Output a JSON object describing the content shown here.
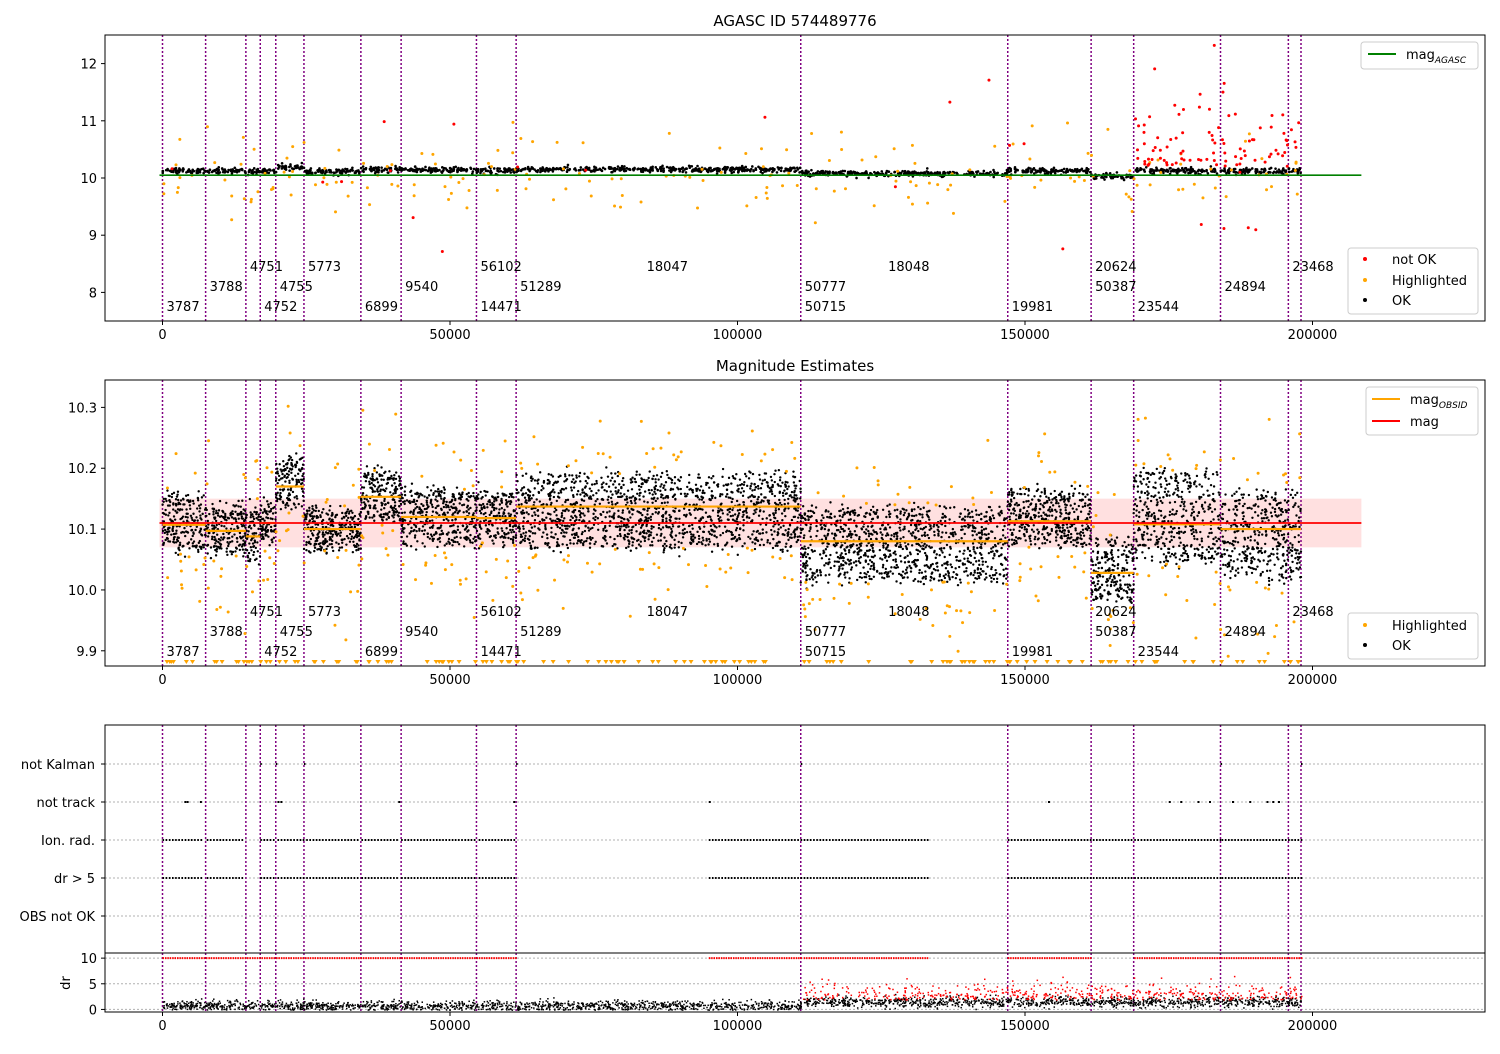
{
  "chart_data": [
    {
      "type": "scatter",
      "title": "AGASC ID 574489776",
      "xlim": [
        -10000,
        230000
      ],
      "ylim": [
        7.5,
        12.5
      ],
      "xticks": [
        0,
        50000,
        100000,
        150000,
        200000
      ],
      "yticks": [
        8,
        9,
        10,
        11,
        12
      ],
      "grid": false,
      "mag_agasc": 10.05,
      "legend_top": {
        "position": "top-right",
        "entries": [
          {
            "label": "mag",
            "sub": "AGASC",
            "color": "#008000"
          }
        ]
      },
      "legend_bottom": {
        "position": "bottom-right",
        "entries": [
          {
            "label": "not OK",
            "color": "#ff0000"
          },
          {
            "label": "Highlighted",
            "color": "#ffa500"
          },
          {
            "label": "OK",
            "color": "#000000"
          }
        ]
      },
      "obsid_labels": [
        {
          "x": 0,
          "label": "3787"
        },
        {
          "x": 7500,
          "label": "3788"
        },
        {
          "x": 14500,
          "label": "4751"
        },
        {
          "x": 17000,
          "label": "4752"
        },
        {
          "x": 19700,
          "label": "4755"
        },
        {
          "x": 24600,
          "label": "5773"
        },
        {
          "x": 34500,
          "label": "6899"
        },
        {
          "x": 41500,
          "label": "9540"
        },
        {
          "x": 54600,
          "label": "56102"
        },
        {
          "x": 54600,
          "label": "14471"
        },
        {
          "x": 61500,
          "label": "51289"
        },
        {
          "x": 83500,
          "label": "18047"
        },
        {
          "x": 111000,
          "label": "50715"
        },
        {
          "x": 111000,
          "label": "50777"
        },
        {
          "x": 125500,
          "label": "18048"
        },
        {
          "x": 147000,
          "label": "19981"
        },
        {
          "x": 161500,
          "label": "50387"
        },
        {
          "x": 161500,
          "label": "20624"
        },
        {
          "x": 168900,
          "label": "23544"
        },
        {
          "x": 184000,
          "label": "24894"
        },
        {
          "x": 195800,
          "label": "23468"
        }
      ],
      "segments": [
        {
          "start": 0,
          "end": 7500,
          "mag": 10.13
        },
        {
          "start": 7500,
          "end": 14500,
          "mag": 10.12
        },
        {
          "start": 14500,
          "end": 17000,
          "mag": 10.11
        },
        {
          "start": 17000,
          "end": 19700,
          "mag": 10.12
        },
        {
          "start": 19700,
          "end": 24600,
          "mag": 10.19
        },
        {
          "start": 24600,
          "end": 34500,
          "mag": 10.11
        },
        {
          "start": 34500,
          "end": 41500,
          "mag": 10.15
        },
        {
          "start": 41500,
          "end": 54600,
          "mag": 10.14
        },
        {
          "start": 54600,
          "end": 61500,
          "mag": 10.13
        },
        {
          "start": 61500,
          "end": 111000,
          "mag": 10.15
        },
        {
          "start": 111000,
          "end": 147000,
          "mag": 10.08
        },
        {
          "start": 147000,
          "end": 161500,
          "mag": 10.13
        },
        {
          "start": 161500,
          "end": 168900,
          "mag": 10.03
        },
        {
          "start": 168900,
          "end": 184000,
          "mag": 10.13
        },
        {
          "start": 184000,
          "end": 198000,
          "mag": 10.12
        }
      ]
    },
    {
      "type": "scatter",
      "title": "Magnitude Estimates",
      "xlim": [
        -10000,
        230000
      ],
      "ylim": [
        9.875,
        10.345
      ],
      "xticks": [
        0,
        50000,
        100000,
        150000,
        200000
      ],
      "yticks": [
        9.9,
        10.0,
        10.1,
        10.2,
        10.3
      ],
      "grid": false,
      "mag": 10.11,
      "mag_band": [
        10.07,
        10.15
      ],
      "legend_top": {
        "position": "top-right",
        "entries": [
          {
            "label": "mag",
            "sub": "OBSID",
            "color": "#ffa500"
          },
          {
            "label": "mag",
            "color": "#ff0000"
          }
        ]
      },
      "legend_bottom": {
        "position": "bottom-right",
        "entries": [
          {
            "label": "Highlighted",
            "color": "#ffa500"
          },
          {
            "label": "OK",
            "color": "#000000"
          }
        ]
      },
      "obsid_means": [
        {
          "start": 0,
          "end": 7500,
          "mean": 10.107,
          "center": 10.11,
          "half_range": 0.045
        },
        {
          "start": 7500,
          "end": 14500,
          "mean": 10.097,
          "center": 10.1,
          "half_range": 0.04
        },
        {
          "start": 14500,
          "end": 17000,
          "mean": 10.088,
          "center": 10.09,
          "half_range": 0.045
        },
        {
          "start": 17000,
          "end": 19700,
          "mean": 10.11,
          "center": 10.11,
          "half_range": 0.03
        },
        {
          "start": 19700,
          "end": 24600,
          "mean": 10.17,
          "center": 10.175,
          "half_range": 0.04
        },
        {
          "start": 24600,
          "end": 34500,
          "mean": 10.1,
          "center": 10.1,
          "half_range": 0.035
        },
        {
          "start": 34500,
          "end": 41500,
          "mean": 10.153,
          "center": 10.155,
          "half_range": 0.04
        },
        {
          "start": 41500,
          "end": 54600,
          "mean": 10.12,
          "center": 10.12,
          "half_range": 0.045
        },
        {
          "start": 54600,
          "end": 61500,
          "mean": 10.118,
          "center": 10.12,
          "half_range": 0.04
        },
        {
          "start": 61500,
          "end": 111000,
          "mean": 10.137,
          "center": 10.13,
          "half_range": 0.06
        },
        {
          "start": 111000,
          "end": 147000,
          "mean": 10.08,
          "center": 10.075,
          "half_range": 0.06
        },
        {
          "start": 147000,
          "end": 161500,
          "mean": 10.113,
          "center": 10.12,
          "half_range": 0.045
        },
        {
          "start": 161500,
          "end": 168900,
          "mean": 10.028,
          "center": 10.035,
          "half_range": 0.05
        },
        {
          "start": 168900,
          "end": 184000,
          "mean": 10.108,
          "center": 10.12,
          "half_range": 0.075
        },
        {
          "start": 184000,
          "end": 198000,
          "mean": 10.1,
          "center": 10.09,
          "half_range": 0.07
        }
      ]
    },
    {
      "type": "scatter",
      "title": "",
      "xlim": [
        -10000,
        230000
      ],
      "flag_rows": [
        "not Kalman",
        "not track",
        "Ion. rad.",
        "dr > 5",
        "OBS not OK"
      ],
      "dr_ylabel": "dr",
      "dr_yticks": [
        0,
        5,
        10
      ],
      "xticks": [
        0,
        50000,
        100000,
        150000,
        200000
      ],
      "grid": "y dotted"
    }
  ],
  "vlines": [
    0,
    7500,
    14500,
    17000,
    19700,
    24600,
    34500,
    41500,
    54600,
    61500,
    111000,
    147000,
    161500,
    168900,
    184000,
    195800,
    198000
  ],
  "colors": {
    "ok": "#000000",
    "highlighted": "#ffa500",
    "not_ok": "#ff0000",
    "agasc": "#008000",
    "vline": "#800080",
    "band": "#ffcccc"
  }
}
